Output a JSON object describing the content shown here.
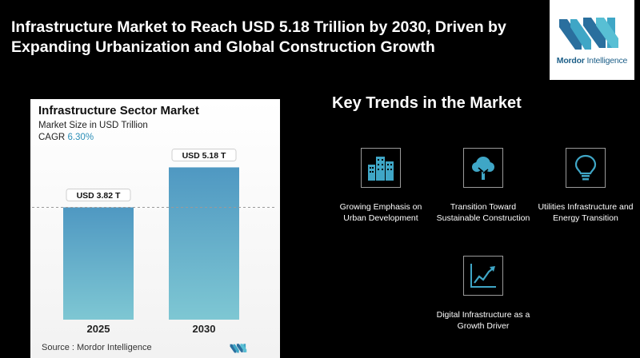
{
  "headline": "Infrastructure Market to Reach USD 5.18 Trillion by 2030, Driven by Expanding Urbanization and Global Construction Growth",
  "brand": {
    "name_bold": "Mordor",
    "name_light": " Intelligence"
  },
  "colors": {
    "accent": "#2c8fb8",
    "bar_top": "#4f98c2",
    "bar_bottom": "#7ec7d3"
  },
  "chart_panel": {
    "title": "Infrastructure Sector Market",
    "subtitle": "Market Size in USD Trillion",
    "cagr_label": "CAGR",
    "cagr_value": "6.30%",
    "source": "Source :  Mordor Intelligence"
  },
  "chart_data": {
    "type": "bar",
    "title": "Infrastructure Sector Market",
    "ylabel": "Market Size in USD Trillion",
    "categories": [
      "2025",
      "2030"
    ],
    "values": [
      3.82,
      5.18
    ],
    "data_labels": [
      "USD 3.82 T",
      "USD 5.18 T"
    ],
    "ylim": [
      0,
      5.6
    ],
    "reference_line": "dashed line at 2025 value",
    "grid": false
  },
  "trends": {
    "title": "Key Trends in the Market",
    "items": [
      {
        "icon": "city-buildings-icon",
        "label": "Growing Emphasis on Urban Development"
      },
      {
        "icon": "tree-icon",
        "label": "Transition Toward Sustainable Construction"
      },
      {
        "icon": "lightbulb-icon",
        "label": "Utilities Infrastructure and Energy Transition"
      },
      {
        "icon": "growth-chart-icon",
        "label": "Digital Infrastructure as a Growth Driver"
      }
    ]
  }
}
